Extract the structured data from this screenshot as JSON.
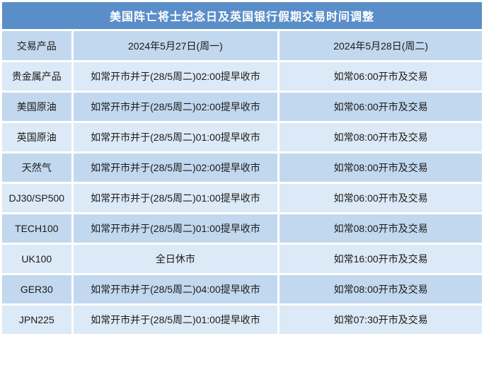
{
  "title": "美国阵亡将士纪念日及英国银行假期交易时间调整",
  "colors": {
    "title_bg": "#5a8ec8",
    "title_text": "#ffffff",
    "row_dark": "#c2d8ee",
    "row_light": "#dce9f6",
    "text": "#1b1b1b",
    "grid": "#ffffff"
  },
  "headers": {
    "product": "交易产品",
    "monday": "2024年5月27日(周一)",
    "tuesday": "2024年5月28日(周二)"
  },
  "rows": [
    {
      "product": "贵金属产品",
      "monday": "如常开市并于(28/5周二)02:00提早收市",
      "tuesday": "如常06:00开市及交易"
    },
    {
      "product": "美国原油",
      "monday": "如常开市并于(28/5周二)02:00提早收市",
      "tuesday": "如常06:00开市及交易"
    },
    {
      "product": "英国原油",
      "monday": "如常开市并于(28/5周二)01:00提早收市",
      "tuesday": "如常08:00开市及交易"
    },
    {
      "product": "天然气",
      "monday": "如常开市并于(28/5周二)02:00提早收市",
      "tuesday": "如常08:00开市及交易"
    },
    {
      "product": "DJ30/SP500",
      "monday": "如常开市并于(28/5周二)01:00提早收市",
      "tuesday": "如常06:00开市及交易"
    },
    {
      "product": "TECH100",
      "monday": "如常开市并于(28/5周二)01:00提早收市",
      "tuesday": "如常08:00开市及交易"
    },
    {
      "product": "UK100",
      "monday": "全日休市",
      "tuesday": "如常16:00开市及交易"
    },
    {
      "product": "GER30",
      "monday": "如常开市并于(28/5周二)04:00提早收市",
      "tuesday": "如常08:00开市及交易"
    },
    {
      "product": "JPN225",
      "monday": "如常开市并于(28/5周二)01:00提早收市",
      "tuesday": "如常07:30开市及交易"
    }
  ]
}
